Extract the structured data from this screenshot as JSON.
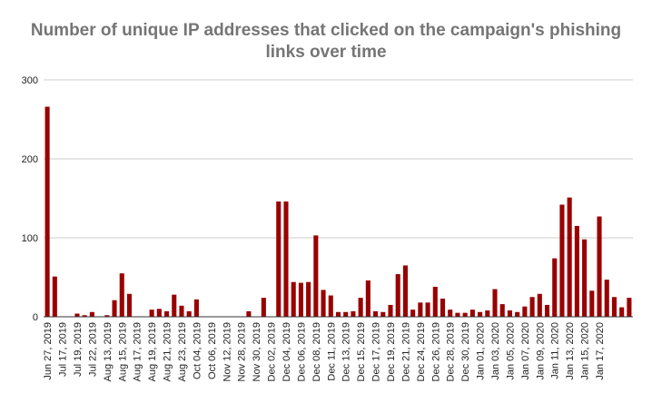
{
  "chart_data": {
    "type": "bar",
    "title_lines": [
      "Number of unique IP addresses that clicked on the campaign's phishing",
      "links over time"
    ],
    "xlabel": "",
    "ylabel": "",
    "ylim": [
      0,
      300
    ],
    "yticks": [
      0,
      100,
      200,
      300
    ],
    "bar_color": "#990000",
    "grid_color": "#cccccc",
    "values": [
      266,
      51,
      0,
      0,
      4,
      2,
      6,
      0,
      2,
      21,
      55,
      29,
      0,
      0,
      9,
      10,
      7,
      28,
      14,
      7,
      22,
      0,
      0,
      0,
      0,
      0,
      0,
      7,
      0,
      24,
      0,
      146,
      146,
      44,
      43,
      44,
      103,
      34,
      27,
      6,
      6,
      7,
      24,
      46,
      7,
      6,
      15,
      54,
      65,
      9,
      18,
      18,
      38,
      23,
      9,
      5,
      5,
      9,
      6,
      8,
      35,
      16,
      8,
      6,
      13,
      25,
      29,
      15,
      74,
      142,
      151,
      115,
      98,
      33,
      127,
      47,
      25,
      12,
      24
    ],
    "x_tick_labels": [
      "Jun 27, 2019",
      "Jul 17, 2019",
      "Jul 19, 2019",
      "Jul 22, 2019",
      "Aug 13, 2019",
      "Aug 15, 2019",
      "Aug 17, 2019",
      "Aug 19, 2019",
      "Aug 21, 2019",
      "Aug 23, 2019",
      "Oct 04, 2019",
      "Oct 06, 2019",
      "Nov 12, 2019",
      "Nov 28, 2019",
      "Nov 30, 2019",
      "Dec 02, 2019",
      "Dec 04, 2019",
      "Dec 06, 2019",
      "Dec 08, 2019",
      "Dec 11, 2019",
      "Dec 13, 2019",
      "Dec 15, 2019",
      "Dec 17, 2019",
      "Dec 19, 2019",
      "Dec 21, 2019",
      "Dec 24, 2019",
      "Dec 26, 2019",
      "Dec 28, 2019",
      "Dec 30, 2019",
      "Jan 01, 2020",
      "Jan 03, 2020",
      "Jan 05, 2020",
      "Jan 07, 2020",
      "Jan 09, 2020",
      "Jan 11, 2020",
      "Jan 13, 2020",
      "Jan 15, 2020",
      "Jan 17, 2020"
    ],
    "x_tick_every": 2
  }
}
